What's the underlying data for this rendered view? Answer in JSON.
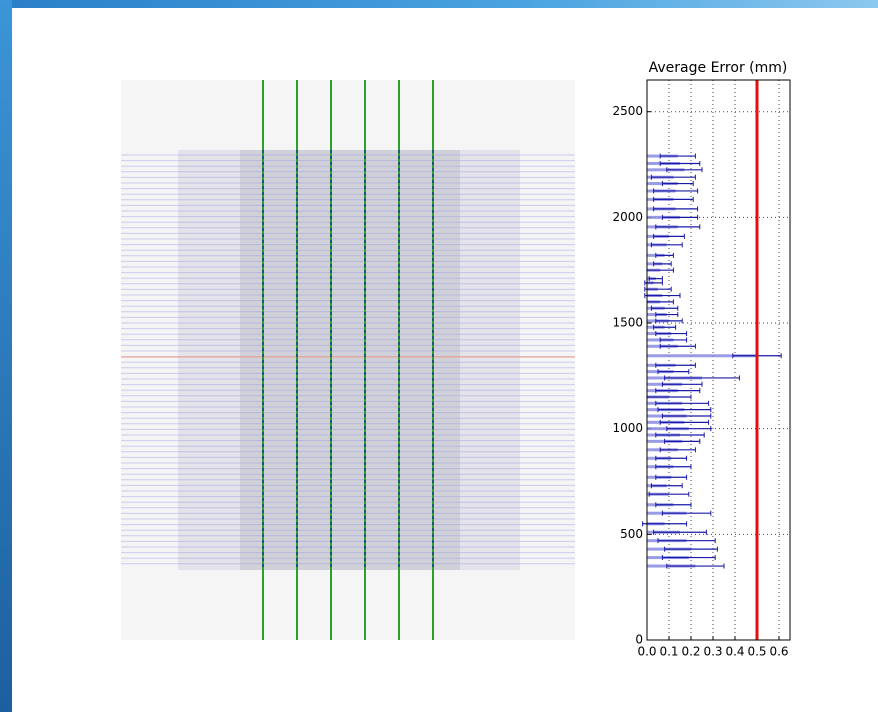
{
  "chart_data": {
    "type": "hbar",
    "title": "Average Error (mm)",
    "y": [
      2290,
      2255,
      2225,
      2190,
      2160,
      2125,
      2085,
      2040,
      2000,
      1955,
      1910,
      1870,
      1820,
      1780,
      1750,
      1710,
      1690,
      1660,
      1630,
      1600,
      1570,
      1540,
      1510,
      1480,
      1450,
      1420,
      1390,
      1345,
      1300,
      1270,
      1240,
      1210,
      1180,
      1150,
      1120,
      1090,
      1060,
      1030,
      1000,
      970,
      940,
      900,
      860,
      820,
      770,
      730,
      690,
      640,
      600,
      550,
      510,
      470,
      430,
      390,
      350
    ],
    "values": [
      0.14,
      0.15,
      0.17,
      0.12,
      0.14,
      0.13,
      0.12,
      0.13,
      0.15,
      0.14,
      0.1,
      0.09,
      0.08,
      0.07,
      0.06,
      0.04,
      0.03,
      0.05,
      0.07,
      0.06,
      0.08,
      0.09,
      0.1,
      0.08,
      0.11,
      0.12,
      0.14,
      0.5,
      0.13,
      0.12,
      0.25,
      0.16,
      0.14,
      0.1,
      0.16,
      0.17,
      0.18,
      0.17,
      0.19,
      0.15,
      0.16,
      0.14,
      0.11,
      0.12,
      0.11,
      0.09,
      0.1,
      0.12,
      0.18,
      0.08,
      0.15,
      0.18,
      0.2,
      0.19,
      0.22
    ],
    "errors": [
      0.08,
      0.09,
      0.08,
      0.1,
      0.07,
      0.1,
      0.09,
      0.1,
      0.08,
      0.1,
      0.07,
      0.07,
      0.04,
      0.04,
      0.06,
      0.03,
      0.04,
      0.06,
      0.08,
      0.06,
      0.06,
      0.05,
      0.06,
      0.05,
      0.07,
      0.06,
      0.08,
      0.11,
      0.09,
      0.07,
      0.17,
      0.09,
      0.1,
      0.1,
      0.12,
      0.12,
      0.11,
      0.11,
      0.1,
      0.11,
      0.08,
      0.08,
      0.07,
      0.08,
      0.07,
      0.07,
      0.09,
      0.08,
      0.11,
      0.1,
      0.12,
      0.13,
      0.12,
      0.12,
      0.13
    ],
    "color": "#8a8ae0",
    "error_color": "#1a1aa8",
    "reference_line": {
      "value": 0.5,
      "color": "#e01010"
    },
    "xlim": [
      0,
      0.65
    ],
    "xticks": [
      {
        "value": 0,
        "label": "0.0"
      },
      0.1,
      0.2,
      0.3,
      0.4,
      0.5,
      0.6
    ],
    "ylim": [
      0,
      2650
    ],
    "yticks": [
      0,
      500,
      1000,
      1500,
      2000,
      2500
    ],
    "grid": true
  }
}
